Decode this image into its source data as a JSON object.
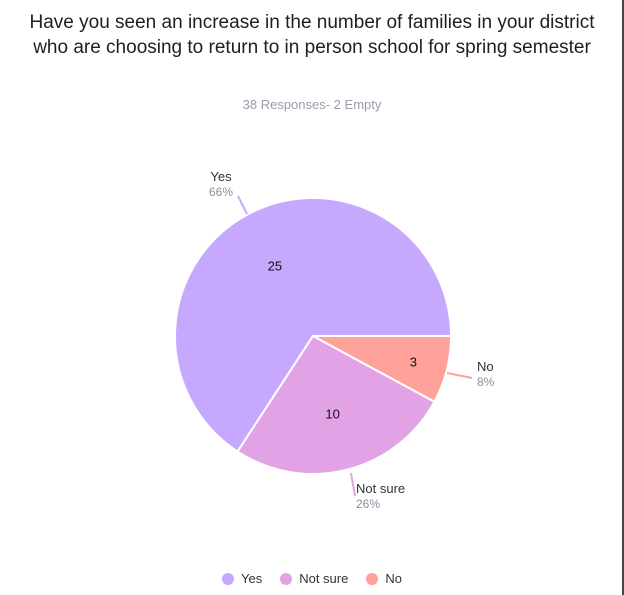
{
  "chart_data": {
    "type": "pie",
    "title": "Have you seen an increase in the number of families in your district who are choosing to return to in person school for spring semester",
    "subtitle": "38 Responses- 2 Empty",
    "slices": [
      {
        "label": "Yes",
        "value": 25,
        "percent": "66%",
        "color": "#c6a8ff"
      },
      {
        "label": "Not sure",
        "value": 10,
        "percent": "26%",
        "color": "#e2a2e6"
      },
      {
        "label": "No",
        "value": 3,
        "percent": "8%",
        "color": "#ffa39a"
      }
    ],
    "legend": {
      "position": "bottom"
    }
  }
}
